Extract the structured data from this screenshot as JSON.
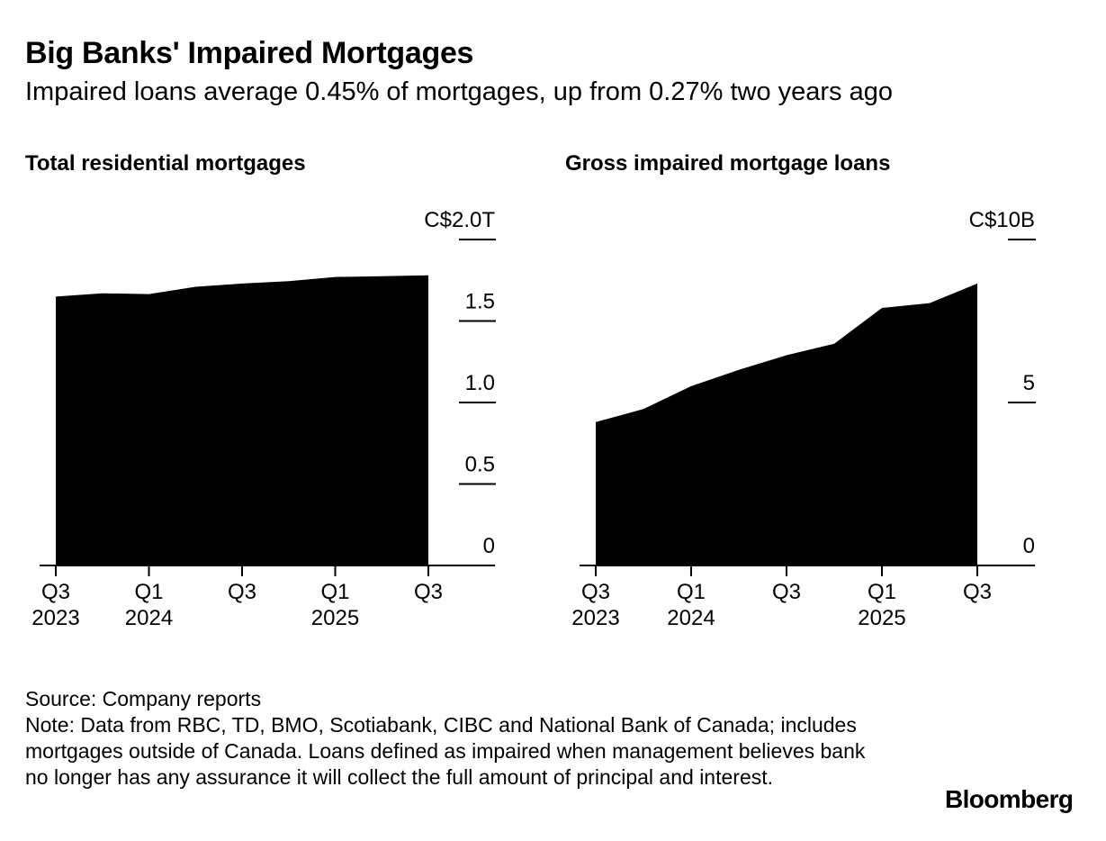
{
  "header": {
    "title": "Big Banks' Impaired Mortgages",
    "subtitle": "Impaired loans average 0.45% of mortgages, up from 0.27% two years ago"
  },
  "chart_data": [
    {
      "type": "area",
      "title": "Total residential mortgages",
      "x": [
        "Q3 2023",
        "Q4 2023",
        "Q1 2024",
        "Q2 2024",
        "Q3 2024",
        "Q4 2024",
        "Q1 2025",
        "Q2 2025",
        "Q3 2025"
      ],
      "values": [
        1.65,
        1.67,
        1.665,
        1.71,
        1.73,
        1.745,
        1.77,
        1.775,
        1.78
      ],
      "ylim": [
        0,
        2.0
      ],
      "ytick_values": [
        0,
        0.5,
        1.0,
        1.5,
        2.0
      ],
      "ytick_labels": [
        "0",
        "0.5",
        "1.0",
        "1.5",
        "C$2.0T"
      ],
      "xtick_labels": [
        [
          "Q3",
          "2023"
        ],
        [
          "Q1",
          "2024"
        ],
        [
          "Q3",
          ""
        ],
        [
          "Q1",
          "2025"
        ],
        [
          "Q3",
          ""
        ]
      ],
      "xtick_index": [
        0,
        2,
        4,
        6,
        8
      ],
      "grid": false,
      "color": "#000000"
    },
    {
      "type": "area",
      "title": "Gross impaired mortgage loans",
      "x": [
        "Q3 2023",
        "Q4 2023",
        "Q1 2024",
        "Q2 2024",
        "Q3 2024",
        "Q4 2024",
        "Q1 2025",
        "Q2 2025",
        "Q3 2025"
      ],
      "values": [
        4.4,
        4.8,
        5.5,
        6.0,
        6.45,
        6.8,
        7.9,
        8.05,
        8.65
      ],
      "ylim": [
        0,
        10
      ],
      "ytick_values": [
        0,
        5,
        10
      ],
      "ytick_labels": [
        "0",
        "5",
        "C$10B"
      ],
      "xtick_labels": [
        [
          "Q3",
          "2023"
        ],
        [
          "Q1",
          "2024"
        ],
        [
          "Q3",
          ""
        ],
        [
          "Q1",
          "2025"
        ],
        [
          "Q3",
          ""
        ]
      ],
      "xtick_index": [
        0,
        2,
        4,
        6,
        8
      ],
      "grid": false,
      "color": "#000000"
    }
  ],
  "footer": {
    "source": "Source: Company reports",
    "note": "Note: Data from RBC, TD, BMO, Scotiabank, CIBC and National Bank of Canada; includes mortgages outside of Canada. Loans defined as impaired when management believes bank no longer has any assurance it will collect the full amount of principal and interest."
  },
  "brand": {
    "logo": "Bloomberg"
  }
}
